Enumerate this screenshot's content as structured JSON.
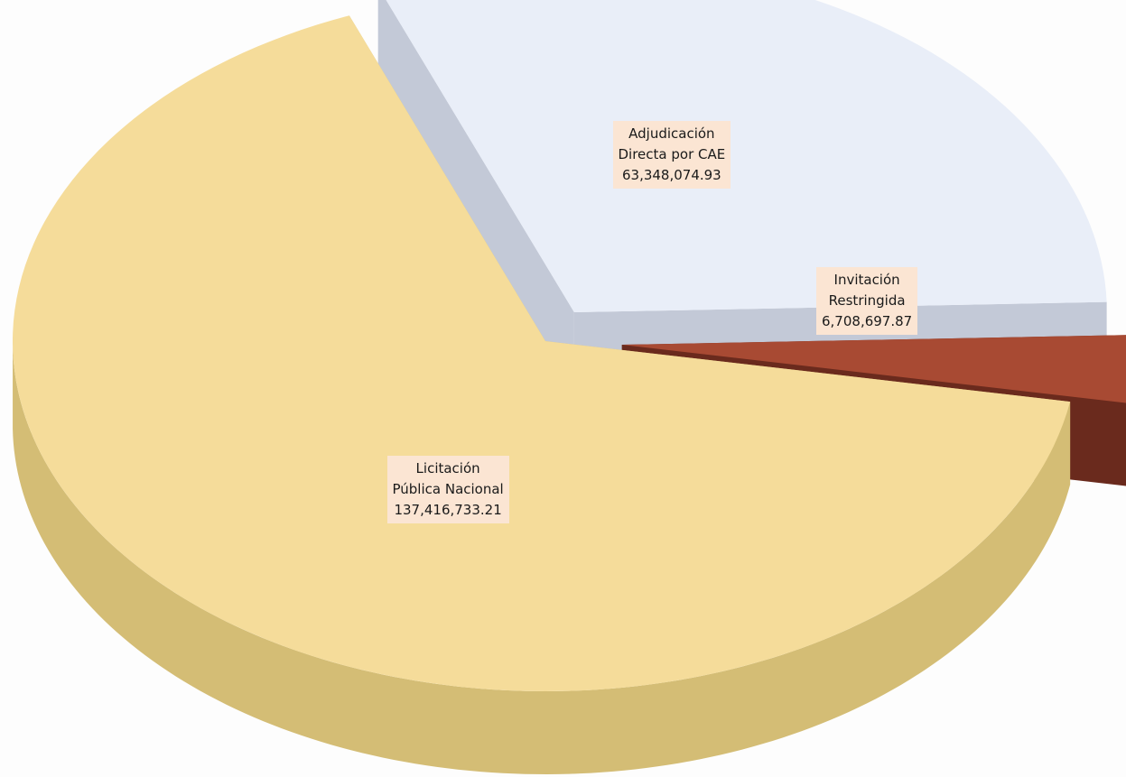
{
  "chart_data": {
    "type": "pie",
    "three_d": true,
    "title": "",
    "legend": "none",
    "slices": [
      {
        "label_line1": "Licitación",
        "label_line2": "Pública Nacional",
        "value": 137416733.21,
        "value_text": "137,416,733.21",
        "color": "#f5dc9a",
        "side_color": "#d4bd75",
        "exploded": false
      },
      {
        "label_line1": "Adjudicación",
        "label_line2": "Directa por CAE",
        "value": 63348074.93,
        "value_text": "63,348,074.93",
        "color": "#e9eef8",
        "side_color": "#c3c9d7",
        "exploded": true
      },
      {
        "label_line1": "Invitación",
        "label_line2": "Restringida",
        "value": 6708697.87,
        "value_text": "6,708,697.87",
        "color": "#a84a33",
        "side_color": "#6a2a1d",
        "exploded": true
      }
    ],
    "label_background": "#fbe5d3"
  }
}
